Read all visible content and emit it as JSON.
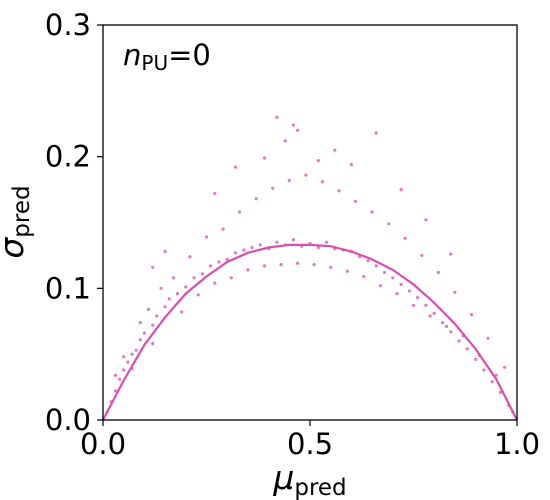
{
  "chart_data": {
    "type": "scatter",
    "xlim": [
      0.0,
      1.0
    ],
    "ylim": [
      0.0,
      0.3
    ],
    "x_ticks": [
      0.0,
      0.5,
      1.0
    ],
    "x_tick_labels": [
      "0.0",
      "0.5",
      "1.0"
    ],
    "y_ticks": [
      0.0,
      0.1,
      0.2,
      0.3
    ],
    "y_tick_labels": [
      "0.0",
      "0.1",
      "0.2",
      "0.3"
    ],
    "xlabel": {
      "symbol": "μ",
      "subscript": "pred"
    },
    "ylabel": {
      "symbol": "σ",
      "subscript": "pred"
    },
    "annotation": {
      "symbol": "n",
      "subscript": "PU",
      "text": "=0"
    },
    "grid": false,
    "legend": "none",
    "series": [
      {
        "kind": "scatter",
        "color": "#e377c2",
        "points": [
          [
            0.01,
            0.006
          ],
          [
            0.02,
            0.014
          ],
          [
            0.03,
            0.022
          ],
          [
            0.04,
            0.031
          ],
          [
            0.05,
            0.038
          ],
          [
            0.06,
            0.044
          ],
          [
            0.07,
            0.05
          ],
          [
            0.08,
            0.053
          ],
          [
            0.09,
            0.061
          ],
          [
            0.1,
            0.066
          ],
          [
            0.12,
            0.072
          ],
          [
            0.13,
            0.079
          ],
          [
            0.15,
            0.086
          ],
          [
            0.16,
            0.092
          ],
          [
            0.18,
            0.096
          ],
          [
            0.2,
            0.101
          ],
          [
            0.22,
            0.108
          ],
          [
            0.24,
            0.111
          ],
          [
            0.26,
            0.117
          ],
          [
            0.28,
            0.12
          ],
          [
            0.3,
            0.122
          ],
          [
            0.32,
            0.127
          ],
          [
            0.34,
            0.129
          ],
          [
            0.36,
            0.131
          ],
          [
            0.38,
            0.133
          ],
          [
            0.4,
            0.13
          ],
          [
            0.42,
            0.135
          ],
          [
            0.44,
            0.133
          ],
          [
            0.46,
            0.137
          ],
          [
            0.48,
            0.132
          ],
          [
            0.5,
            0.134
          ],
          [
            0.52,
            0.131
          ],
          [
            0.54,
            0.135
          ],
          [
            0.56,
            0.13
          ],
          [
            0.58,
            0.129
          ],
          [
            0.6,
            0.128
          ],
          [
            0.62,
            0.124
          ],
          [
            0.64,
            0.121
          ],
          [
            0.66,
            0.117
          ],
          [
            0.68,
            0.112
          ],
          [
            0.7,
            0.108
          ],
          [
            0.72,
            0.103
          ],
          [
            0.74,
            0.098
          ],
          [
            0.76,
            0.093
          ],
          [
            0.78,
            0.087
          ],
          [
            0.8,
            0.081
          ],
          [
            0.82,
            0.074
          ],
          [
            0.84,
            0.067
          ],
          [
            0.86,
            0.06
          ],
          [
            0.88,
            0.054
          ],
          [
            0.9,
            0.046
          ],
          [
            0.92,
            0.038
          ],
          [
            0.94,
            0.029
          ],
          [
            0.96,
            0.021
          ],
          [
            0.98,
            0.011
          ],
          [
            0.99,
            0.006
          ],
          [
            0.03,
            0.034
          ],
          [
            0.05,
            0.048
          ],
          [
            0.07,
            0.039
          ],
          [
            0.09,
            0.074
          ],
          [
            0.11,
            0.084
          ],
          [
            0.12,
            0.058
          ],
          [
            0.14,
            0.1
          ],
          [
            0.17,
            0.108
          ],
          [
            0.19,
            0.082
          ],
          [
            0.21,
            0.124
          ],
          [
            0.23,
            0.095
          ],
          [
            0.25,
            0.139
          ],
          [
            0.27,
            0.104
          ],
          [
            0.29,
            0.145
          ],
          [
            0.31,
            0.108
          ],
          [
            0.33,
            0.158
          ],
          [
            0.35,
            0.114
          ],
          [
            0.37,
            0.168
          ],
          [
            0.39,
            0.117
          ],
          [
            0.41,
            0.176
          ],
          [
            0.43,
            0.118
          ],
          [
            0.45,
            0.182
          ],
          [
            0.47,
            0.119
          ],
          [
            0.49,
            0.186
          ],
          [
            0.51,
            0.118
          ],
          [
            0.53,
            0.181
          ],
          [
            0.55,
            0.116
          ],
          [
            0.57,
            0.174
          ],
          [
            0.59,
            0.113
          ],
          [
            0.61,
            0.166
          ],
          [
            0.63,
            0.109
          ],
          [
            0.65,
            0.158
          ],
          [
            0.67,
            0.102
          ],
          [
            0.69,
            0.149
          ],
          [
            0.71,
            0.096
          ],
          [
            0.73,
            0.138
          ],
          [
            0.75,
            0.087
          ],
          [
            0.77,
            0.125
          ],
          [
            0.79,
            0.079
          ],
          [
            0.81,
            0.112
          ],
          [
            0.83,
            0.071
          ],
          [
            0.85,
            0.097
          ],
          [
            0.87,
            0.064
          ],
          [
            0.89,
            0.08
          ],
          [
            0.91,
            0.049
          ],
          [
            0.93,
            0.062
          ],
          [
            0.95,
            0.034
          ],
          [
            0.97,
            0.04
          ],
          [
            0.42,
            0.23
          ],
          [
            0.46,
            0.224
          ],
          [
            0.47,
            0.22
          ],
          [
            0.44,
            0.212
          ],
          [
            0.66,
            0.218
          ],
          [
            0.56,
            0.205
          ],
          [
            0.39,
            0.199
          ],
          [
            0.52,
            0.197
          ],
          [
            0.32,
            0.192
          ],
          [
            0.6,
            0.194
          ],
          [
            0.72,
            0.175
          ],
          [
            0.27,
            0.172
          ],
          [
            0.15,
            0.128
          ],
          [
            0.12,
            0.116
          ],
          [
            0.78,
            0.152
          ],
          [
            0.84,
            0.126
          ]
        ]
      },
      {
        "kind": "line",
        "color": "#d94fae",
        "x": [
          0.0,
          0.05,
          0.1,
          0.15,
          0.2,
          0.25,
          0.3,
          0.35,
          0.4,
          0.45,
          0.5,
          0.55,
          0.6,
          0.65,
          0.7,
          0.75,
          0.8,
          0.85,
          0.9,
          0.95,
          1.0
        ],
        "y": [
          0.0,
          0.03,
          0.057,
          0.078,
          0.096,
          0.109,
          0.12,
          0.127,
          0.131,
          0.133,
          0.133,
          0.132,
          0.128,
          0.122,
          0.114,
          0.103,
          0.089,
          0.073,
          0.054,
          0.031,
          0.0
        ]
      }
    ]
  }
}
